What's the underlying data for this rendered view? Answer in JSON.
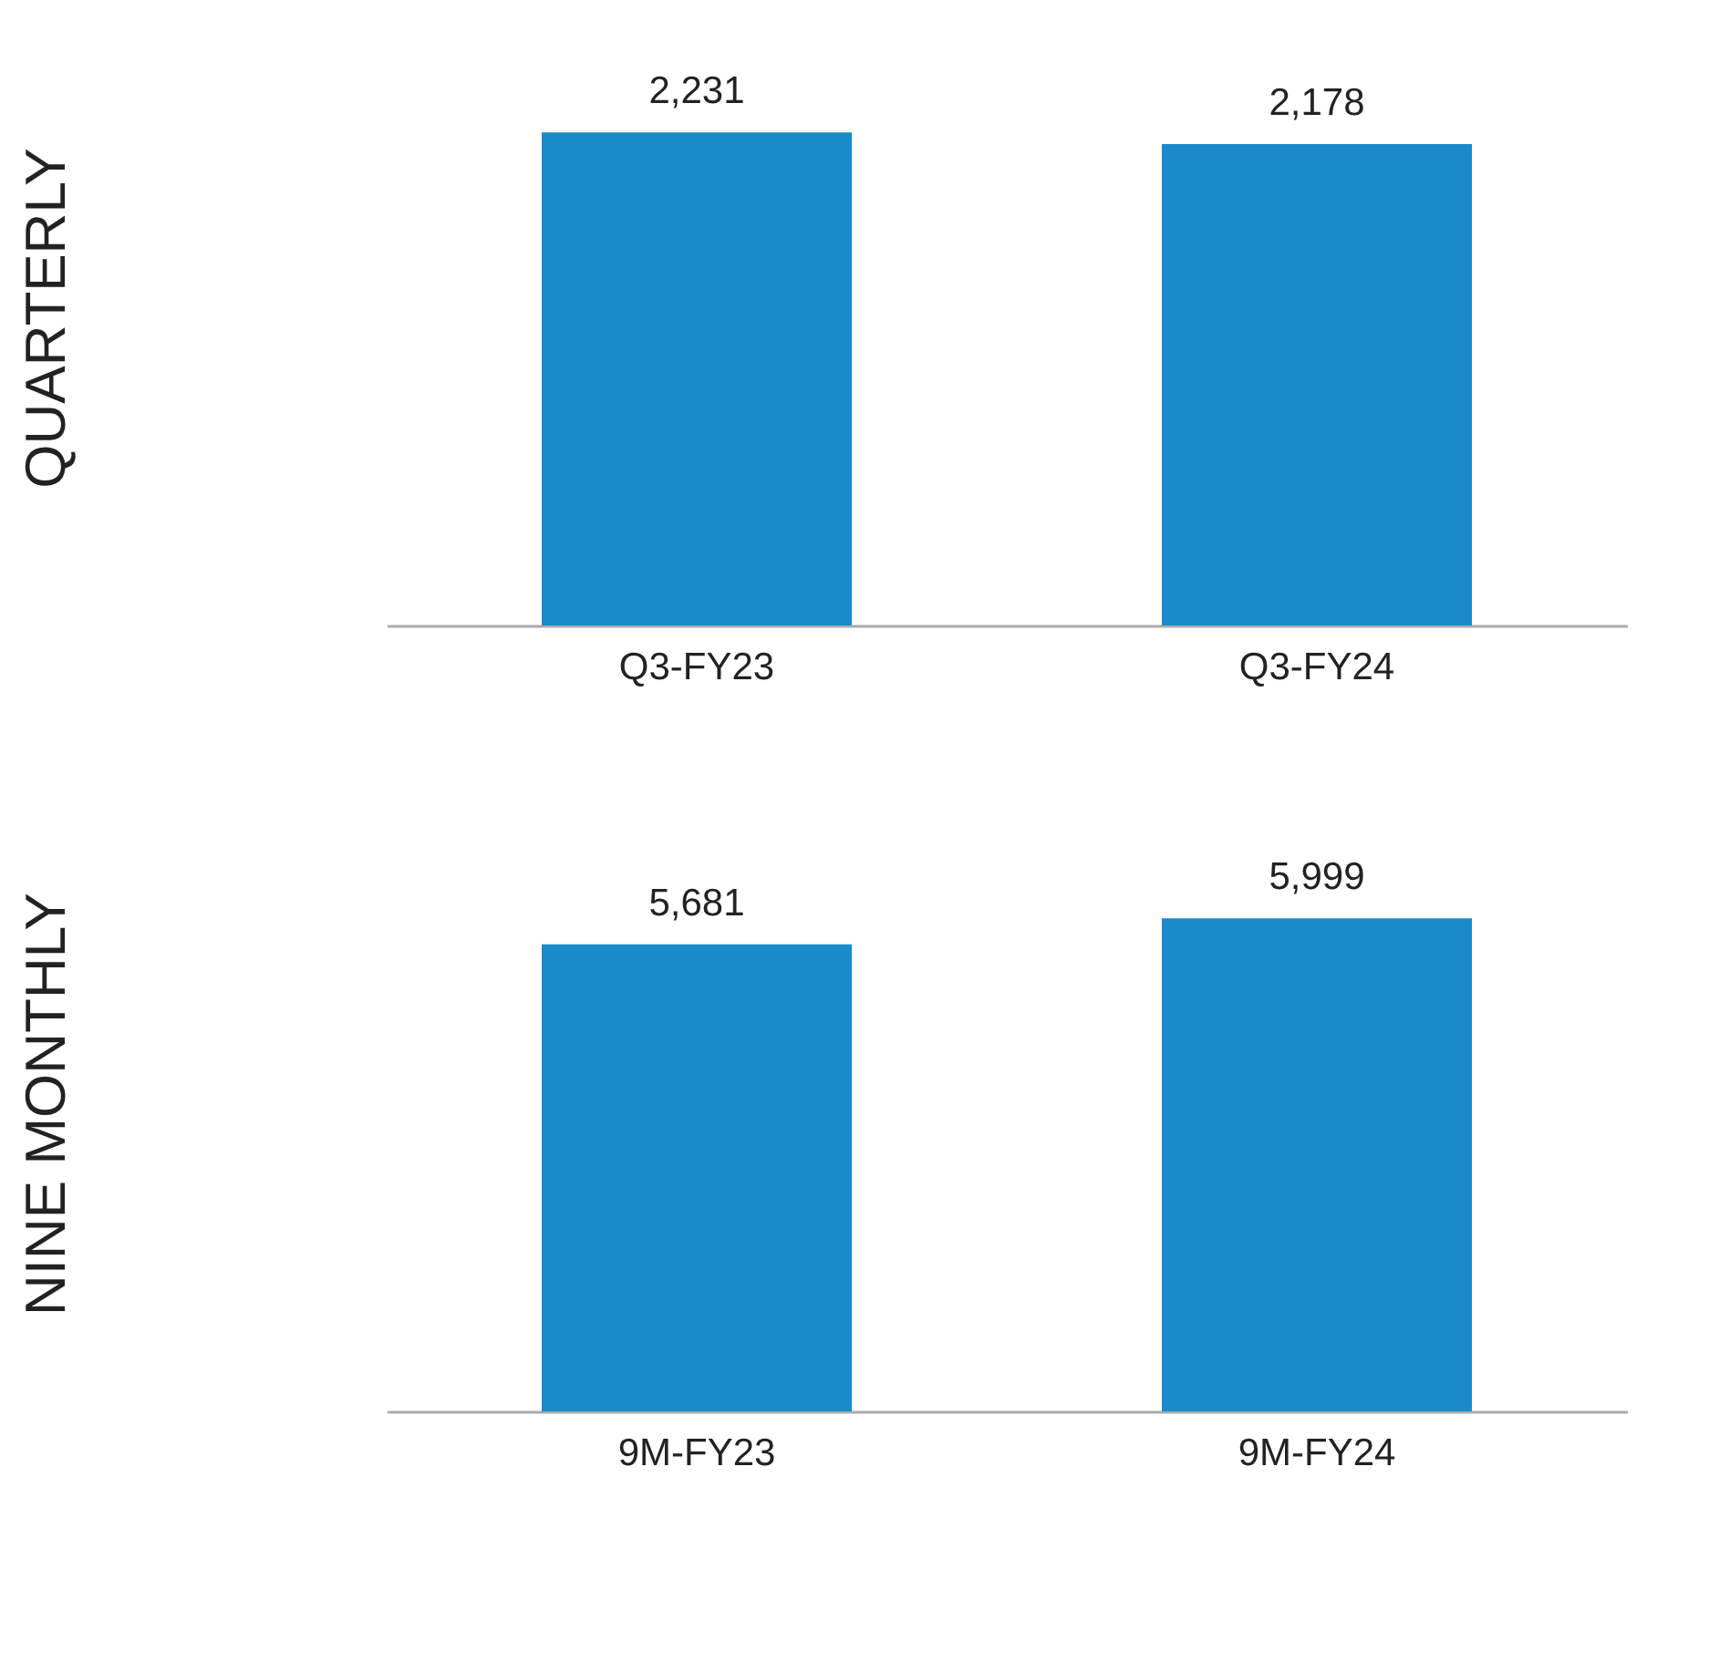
{
  "chart_data": [
    {
      "type": "bar",
      "ylabel": "QUARTERLY",
      "categories": [
        "Q3-FY23",
        "Q3-FY24"
      ],
      "values": [
        2231,
        2178
      ],
      "value_labels": [
        "2,231",
        "2,178"
      ],
      "color": "#1a8ac9",
      "tick_labels": "x"
    },
    {
      "type": "bar",
      "ylabel": "NINE MONTHLY",
      "categories": [
        "9M-FY23",
        "9M-FY24"
      ],
      "values": [
        5681,
        5999
      ],
      "value_labels": [
        "5,681",
        "5,999"
      ],
      "color": "#1a8ac9",
      "tick_labels": "x"
    }
  ]
}
